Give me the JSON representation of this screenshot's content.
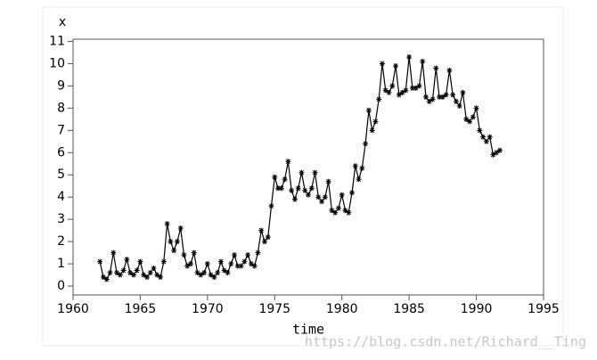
{
  "chart_data": {
    "type": "line",
    "x_label": "time",
    "y_label": "x",
    "watermark": "https://blog.csdn.net/Richard__Ting",
    "x": [
      1962,
      1962.25,
      1962.5,
      1962.75,
      1963,
      1963.25,
      1963.5,
      1963.75,
      1964,
      1964.25,
      1964.5,
      1964.75,
      1965,
      1965.25,
      1965.5,
      1965.75,
      1966,
      1966.25,
      1966.5,
      1966.75,
      1967,
      1967.25,
      1967.5,
      1967.75,
      1968,
      1968.25,
      1968.5,
      1968.75,
      1969,
      1969.25,
      1969.5,
      1969.75,
      1970,
      1970.25,
      1970.5,
      1970.75,
      1971,
      1971.25,
      1971.5,
      1971.75,
      1972,
      1972.25,
      1972.5,
      1972.75,
      1973,
      1973.25,
      1973.5,
      1973.75,
      1974,
      1974.25,
      1974.5,
      1974.75,
      1975,
      1975.25,
      1975.5,
      1975.75,
      1976,
      1976.25,
      1976.5,
      1976.75,
      1977,
      1977.25,
      1977.5,
      1977.75,
      1978,
      1978.25,
      1978.5,
      1978.75,
      1979,
      1979.25,
      1979.5,
      1979.75,
      1980,
      1980.25,
      1980.5,
      1980.75,
      1981,
      1981.25,
      1981.5,
      1981.75,
      1982,
      1982.25,
      1982.5,
      1982.75,
      1983,
      1983.25,
      1983.5,
      1983.75,
      1984,
      1984.25,
      1984.5,
      1984.75,
      1985,
      1985.25,
      1985.5,
      1985.75,
      1986,
      1986.25,
      1986.5,
      1986.75,
      1987,
      1987.25,
      1987.5,
      1987.75,
      1988,
      1988.25,
      1988.5,
      1988.75,
      1989,
      1989.25,
      1989.5,
      1989.75,
      1990,
      1990.25,
      1990.5,
      1990.75,
      1991,
      1991.25,
      1991.5,
      1991.75
    ],
    "values": [
      1.1,
      0.4,
      0.3,
      0.6,
      1.5,
      0.6,
      0.5,
      0.7,
      1.2,
      0.6,
      0.5,
      0.7,
      1.1,
      0.5,
      0.4,
      0.6,
      0.8,
      0.5,
      0.4,
      1.1,
      2.8,
      2.0,
      1.6,
      2.0,
      2.6,
      1.4,
      0.9,
      1.0,
      1.5,
      0.6,
      0.5,
      0.6,
      1.0,
      0.5,
      0.4,
      0.6,
      1.1,
      0.7,
      0.6,
      1.0,
      1.4,
      0.9,
      0.9,
      1.1,
      1.4,
      1.0,
      0.9,
      1.5,
      2.5,
      2.0,
      2.2,
      3.6,
      4.9,
      4.4,
      4.4,
      4.8,
      5.6,
      4.3,
      3.9,
      4.4,
      5.1,
      4.3,
      4.1,
      4.4,
      5.1,
      4.0,
      3.8,
      4.0,
      4.7,
      3.4,
      3.3,
      3.5,
      4.1,
      3.4,
      3.3,
      4.2,
      5.4,
      4.8,
      5.3,
      6.4,
      7.9,
      7.0,
      7.4,
      8.4,
      10.0,
      8.8,
      8.7,
      9.0,
      9.9,
      8.6,
      8.7,
      8.8,
      10.3,
      8.9,
      8.9,
      9.0,
      10.1,
      8.5,
      8.3,
      8.4,
      9.8,
      8.5,
      8.5,
      8.6,
      9.7,
      8.6,
      8.3,
      8.1,
      8.7,
      7.5,
      7.4,
      7.6,
      8.0,
      7.0,
      6.7,
      6.5,
      6.7,
      5.9,
      6.0,
      6.1
    ],
    "color": "#000000",
    "xlim": [
      1960,
      1995
    ],
    "xticks": [
      1960,
      1965,
      1970,
      1975,
      1980,
      1985,
      1990,
      1995
    ],
    "ylim": [
      -0.4,
      11.1
    ],
    "yticks": [
      0,
      1,
      2,
      3,
      4,
      5,
      6,
      7,
      8,
      9,
      10,
      11
    ]
  }
}
